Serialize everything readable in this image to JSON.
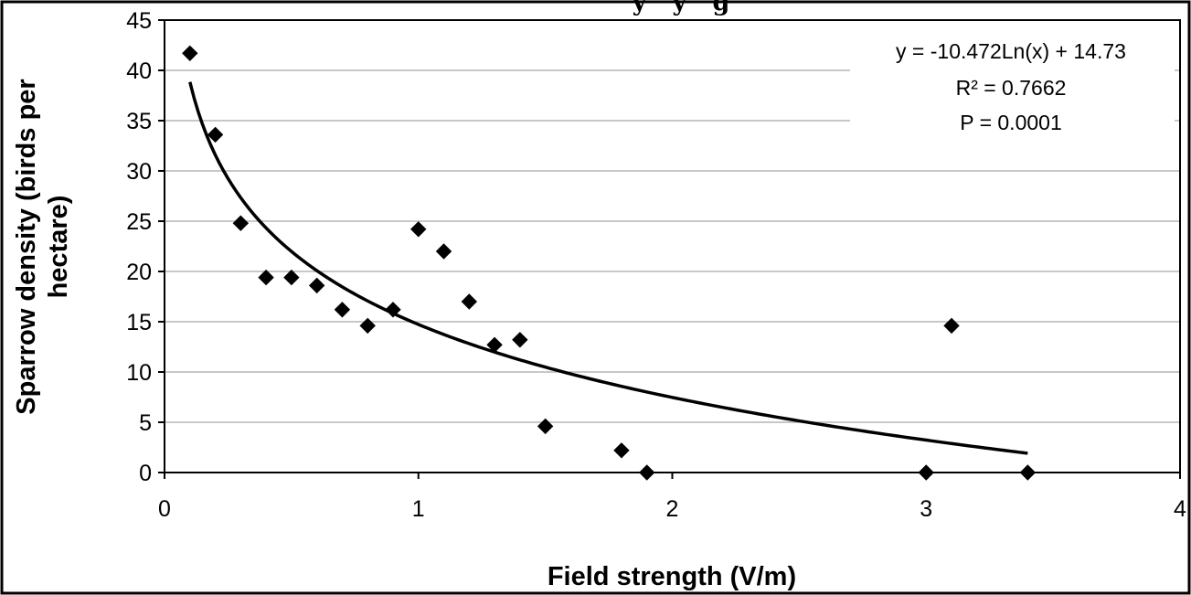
{
  "chart_data": {
    "type": "scatter",
    "title_fragment": "y   y   g",
    "xlabel": "Field strength (V/m)",
    "ylabel_lines": [
      "Sparrow density (birds per",
      "hectare)"
    ],
    "xlim": [
      0,
      4
    ],
    "ylim": [
      0,
      45
    ],
    "x_ticks": [
      0,
      1,
      2,
      3,
      4
    ],
    "y_ticks": [
      0,
      5,
      10,
      15,
      20,
      25,
      30,
      35,
      40,
      45
    ],
    "grid": "horizontal",
    "legend": "none",
    "series": [
      {
        "marker": "diamond",
        "points": [
          {
            "x": 0.1,
            "y": 41.7
          },
          {
            "x": 0.2,
            "y": 33.6
          },
          {
            "x": 0.3,
            "y": 24.8
          },
          {
            "x": 0.4,
            "y": 19.4
          },
          {
            "x": 0.5,
            "y": 19.4
          },
          {
            "x": 0.6,
            "y": 18.6
          },
          {
            "x": 0.7,
            "y": 16.2
          },
          {
            "x": 0.8,
            "y": 14.6
          },
          {
            "x": 0.9,
            "y": 16.2
          },
          {
            "x": 1.0,
            "y": 24.2
          },
          {
            "x": 1.1,
            "y": 22.0
          },
          {
            "x": 1.2,
            "y": 17.0
          },
          {
            "x": 1.3,
            "y": 12.7
          },
          {
            "x": 1.4,
            "y": 13.2
          },
          {
            "x": 1.5,
            "y": 4.6
          },
          {
            "x": 1.8,
            "y": 2.2
          },
          {
            "x": 1.9,
            "y": 0.0
          },
          {
            "x": 3.0,
            "y": 0.0
          },
          {
            "x": 3.1,
            "y": 14.6
          },
          {
            "x": 3.4,
            "y": 0.0
          }
        ]
      }
    ],
    "trendline": {
      "type": "logarithmic",
      "a": -10.472,
      "b": 14.73,
      "x_range": [
        0.1,
        3.4
      ]
    },
    "annotations": [
      "y = -10.472Ln(x) + 14.73",
      "R² = 0.7662",
      "P = 0.0001"
    ]
  }
}
